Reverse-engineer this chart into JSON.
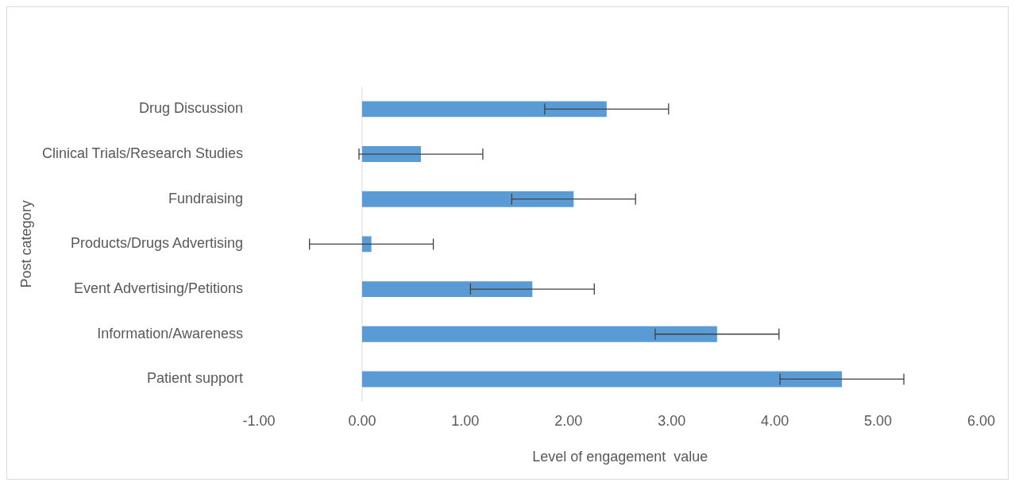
{
  "chart_data": {
    "type": "bar",
    "orientation": "horizontal",
    "xlabel": "Level of engagement  value",
    "ylabel": "Post category",
    "categories": [
      "Drug Discussion",
      "Clinical Trials/Research Studies",
      "Fundraising",
      "Products/Drugs Advertising",
      "Event Advertising/Petitions",
      "Information/Awareness",
      "Patient support"
    ],
    "values": [
      2.37,
      0.57,
      2.05,
      0.09,
      1.65,
      3.44,
      4.65
    ],
    "errors": [
      0.6,
      0.6,
      0.6,
      0.6,
      0.6,
      0.6,
      0.6
    ],
    "color": "#5b9bd5",
    "xlim": [
      -1,
      6
    ],
    "xticks": [
      {
        "value": -1,
        "label": "-1.00"
      },
      {
        "value": 0,
        "label": "0.00"
      },
      {
        "value": 1,
        "label": "1.00"
      },
      {
        "value": 2,
        "label": "2.00"
      },
      {
        "value": 3,
        "label": "3.00"
      },
      {
        "value": 4,
        "label": "4.00"
      },
      {
        "value": 5,
        "label": "5.00"
      },
      {
        "value": 6,
        "label": "6.00"
      }
    ],
    "ref_lines": [
      {
        "axis": "x",
        "value": 0,
        "color": "#d9d9d9"
      }
    ],
    "grid": false,
    "legend": false
  }
}
